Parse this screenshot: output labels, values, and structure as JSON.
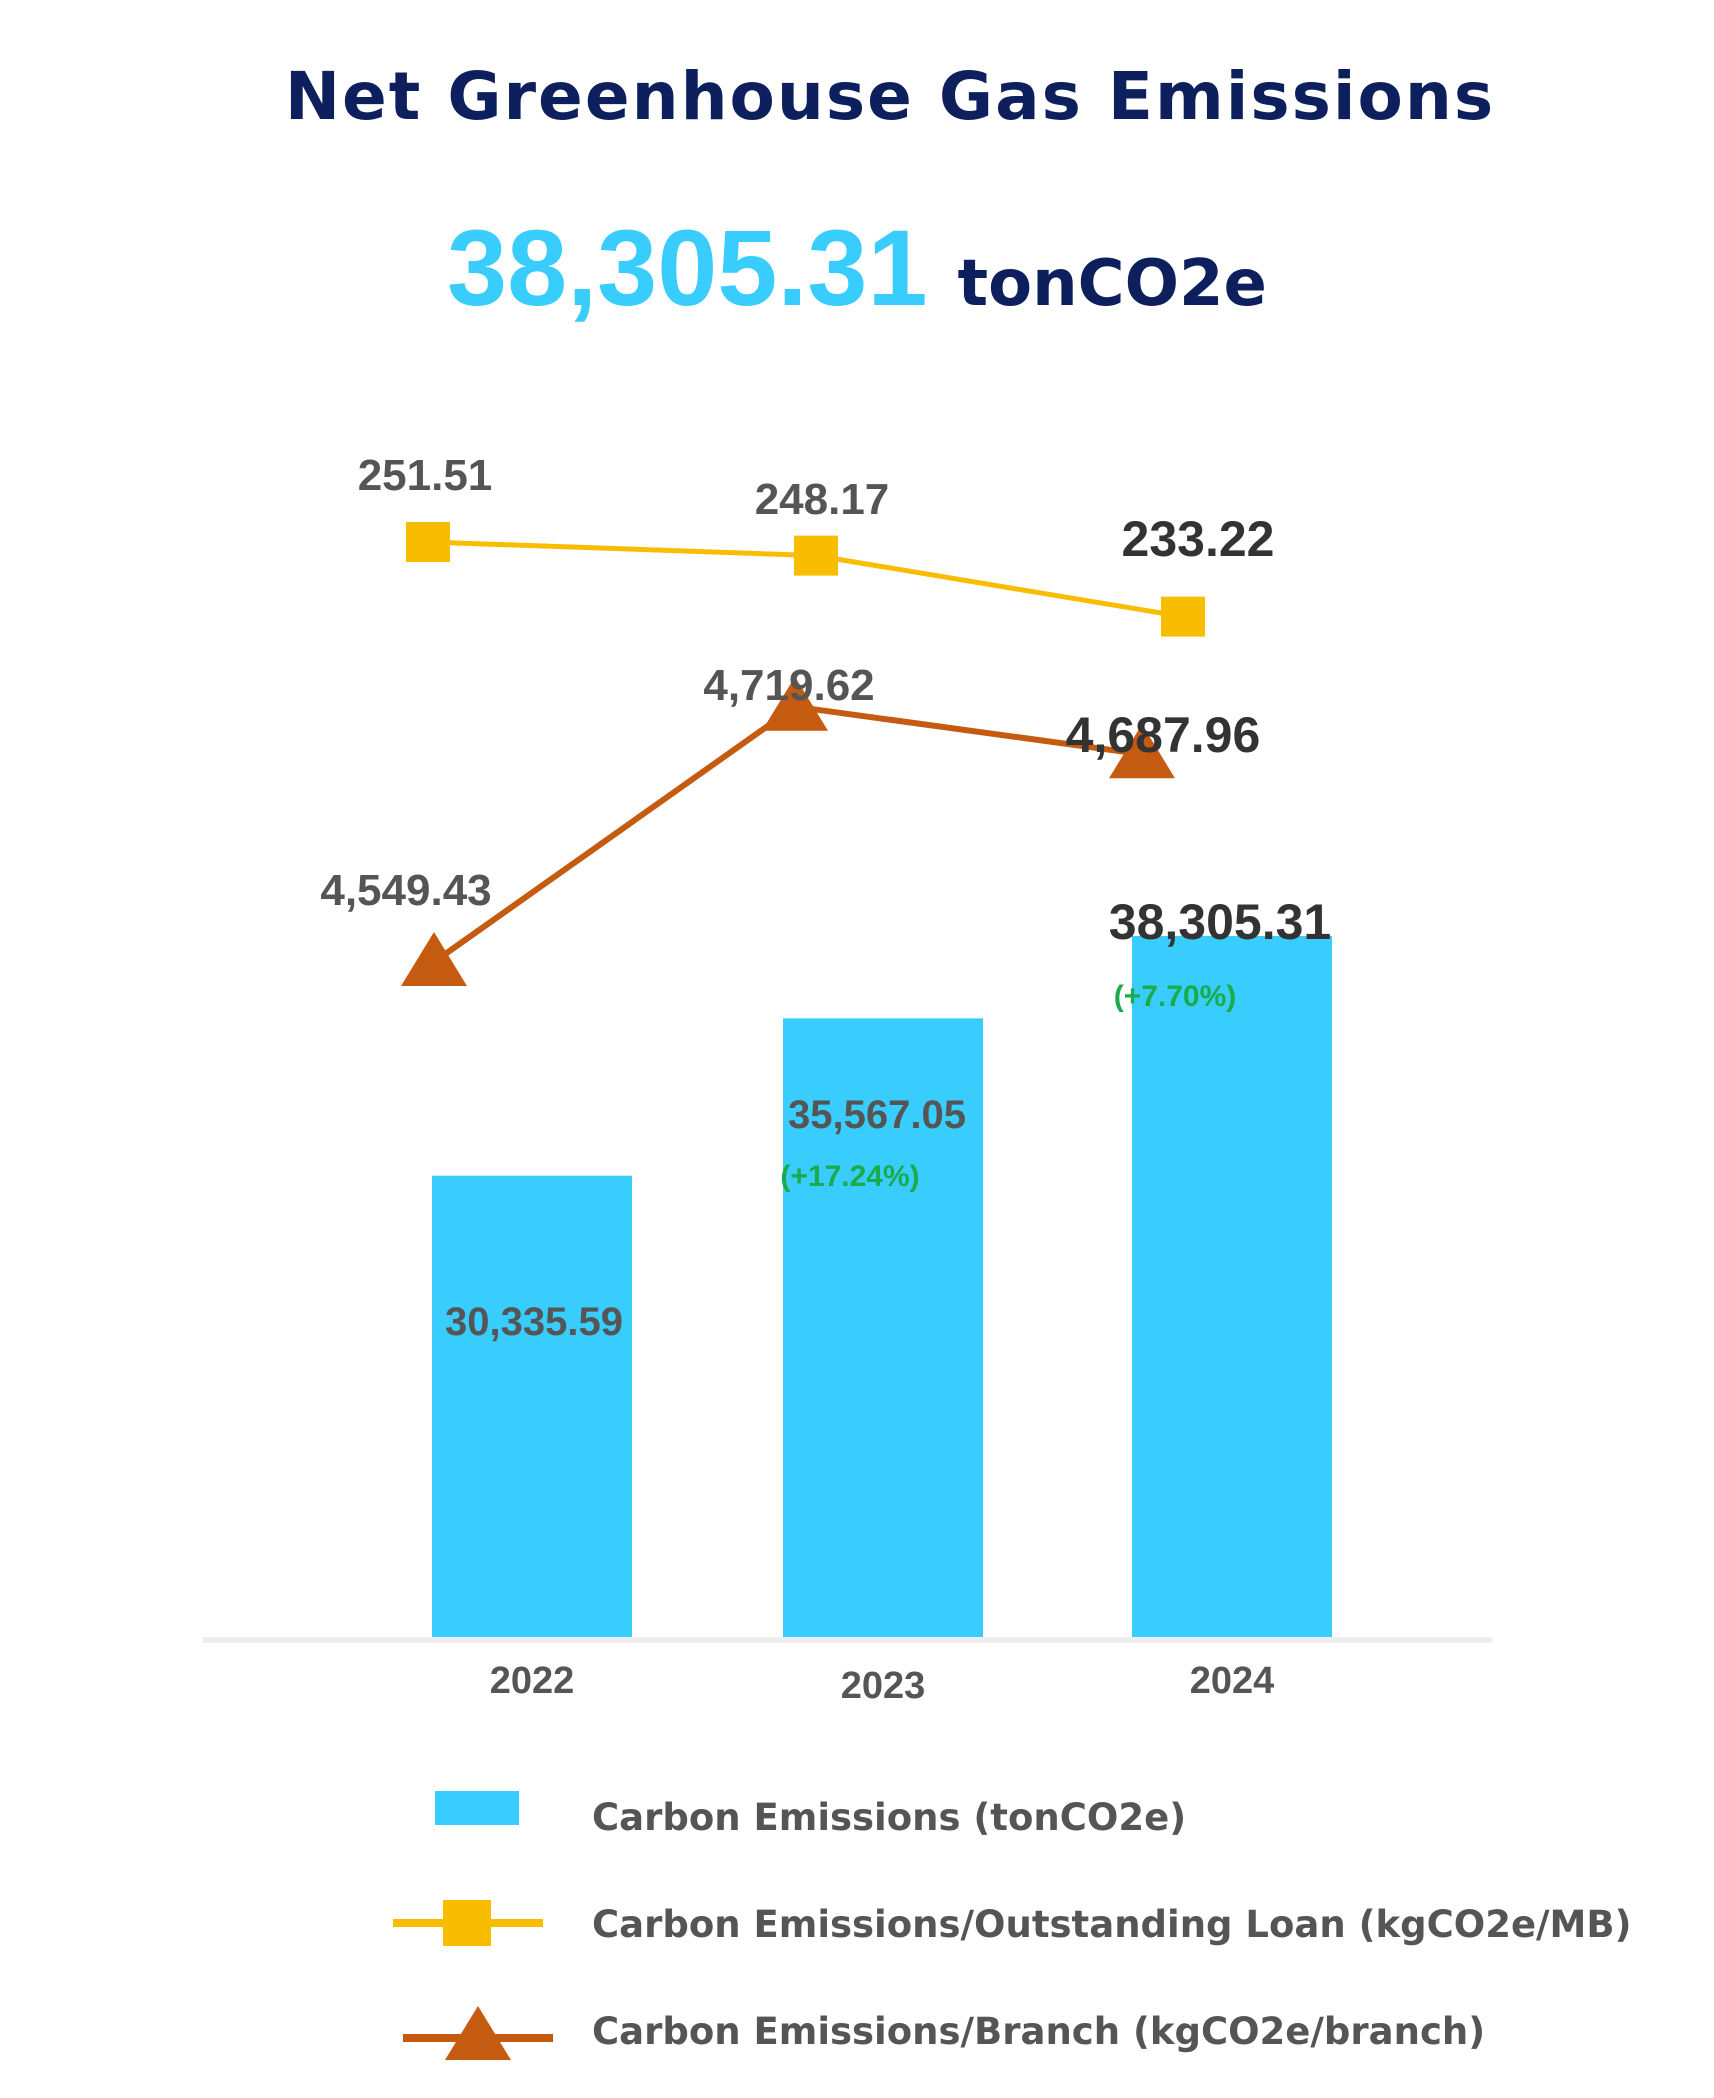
{
  "title": "Net Greenhouse Gas Emissions",
  "headline": {
    "value": "38,305.31",
    "unit": "tonCO2e"
  },
  "colors": {
    "bar": "#38cdfd",
    "loan_line": "#f9bd00",
    "branch_line": "#c55a11",
    "title": "#0d1f5c",
    "label": "#555555",
    "change": "#1aab4b"
  },
  "chart_data": {
    "type": "bar+line",
    "categories": [
      "2022",
      "2023",
      "2024"
    ],
    "series": [
      {
        "name": "Carbon Emissions (tonCO2e)",
        "type": "bar",
        "values": [
          30335.59,
          35567.05,
          38305.31
        ],
        "labels": [
          "30,335.59",
          "35,567.05",
          "38,305.31"
        ],
        "changes": [
          "",
          "(+17.24%)",
          "(+7.70%)"
        ]
      },
      {
        "name": "Carbon Emissions/Outstanding Loan (kgCO2e/MB)",
        "type": "line",
        "marker": "square",
        "values": [
          251.51,
          248.17,
          233.22
        ],
        "labels": [
          "251.51",
          "248.17",
          "233.22"
        ]
      },
      {
        "name": "Carbon Emissions/Branch (kgCO2e/branch)",
        "type": "line",
        "marker": "triangle",
        "values": [
          4549.43,
          4719.62,
          4687.96
        ],
        "labels": [
          "4,549.43",
          "4,719.62",
          "4,687.96"
        ]
      }
    ],
    "legend_position": "bottom",
    "grid": false
  },
  "legend": [
    {
      "label": "Carbon Emissions (tonCO2e)",
      "icon": "bar-swatch"
    },
    {
      "label": "Carbon Emissions/Outstanding Loan (kgCO2e/MB)",
      "icon": "square-line"
    },
    {
      "label": "Carbon Emissions/Branch (kgCO2e/branch)",
      "icon": "triangle-line"
    }
  ]
}
